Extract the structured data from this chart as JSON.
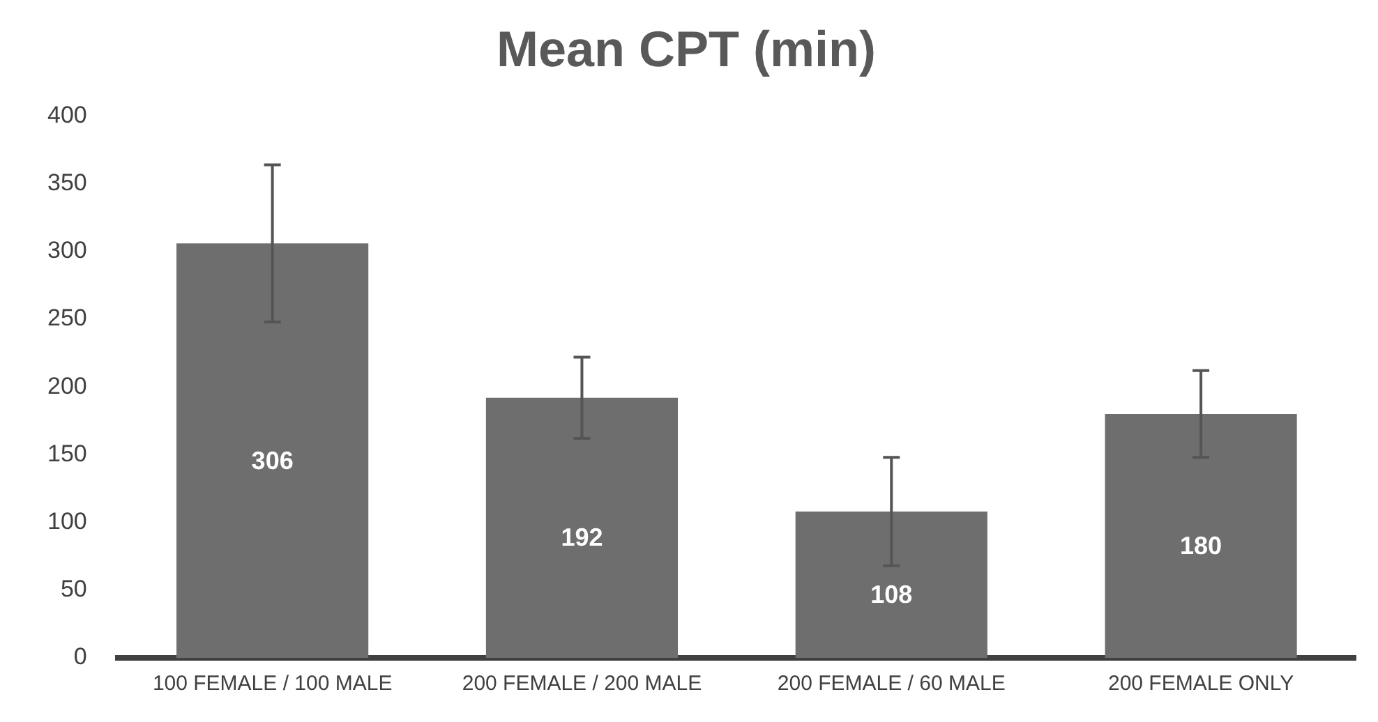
{
  "chart_data": {
    "type": "bar",
    "title": "Mean CPT (min)",
    "categories": [
      "100 FEMALE / 100 MALE",
      "200 FEMALE / 200 MALE",
      "200 FEMALE / 60 MALE",
      "200 FEMALE ONLY"
    ],
    "values": [
      306,
      192,
      108,
      180
    ],
    "errors": [
      58,
      30,
      40,
      32
    ],
    "color": "#6e6e6e",
    "data_labels": true,
    "ylim": [
      0,
      400
    ],
    "yticks": [
      0,
      50,
      100,
      150,
      200,
      250,
      300,
      350,
      400
    ],
    "grid": false,
    "legend": false
  }
}
